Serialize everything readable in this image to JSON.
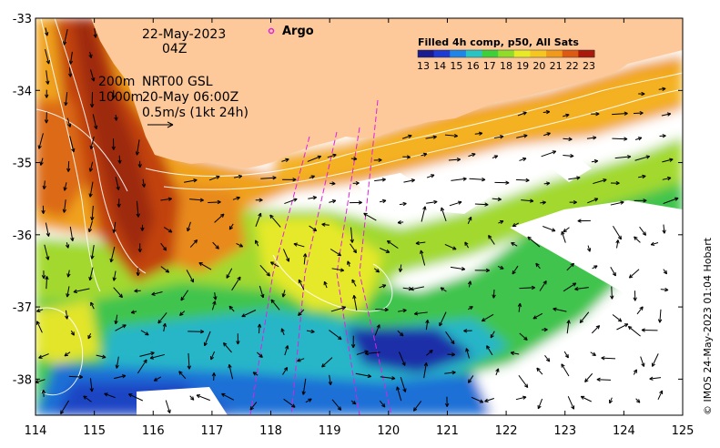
{
  "map": {
    "date": "22-May-2023",
    "hour": "04Z",
    "isobath_label": "200m",
    "isobath_label_2": "1000m",
    "current_source": "NRT00 GSL",
    "current_time": "20-May 06:00Z",
    "scale_label": "0.5m/s (1kt 24h)",
    "legend_marker_label": "Argo",
    "colorbar_title": "Filled 4h comp, p50, All Sats",
    "colorbar_ticks": [
      "13",
      "14",
      "15",
      "16",
      "17",
      "18",
      "19",
      "20",
      "21",
      "22",
      "23"
    ],
    "credit": "© IMOS 24-May-2023 01:04 Hobart",
    "lon_ticks": [
      "114",
      "115",
      "116",
      "117",
      "118",
      "119",
      "120",
      "121",
      "122",
      "123",
      "124",
      "125"
    ],
    "lat_ticks": [
      "-33",
      "-34",
      "-35",
      "-36",
      "-37",
      "-38"
    ],
    "lon_range": [
      114,
      125
    ],
    "lat_range": [
      -38.5,
      -33
    ],
    "colors": {
      "land": "#fdc99b",
      "cold": "#1a2d9e",
      "warm": "#b32a14",
      "argo_marker": "#e020e0"
    },
    "colorbar_colors": [
      "#1b1a8f",
      "#1d3bd0",
      "#1f86e8",
      "#2bc4c4",
      "#3fcf3a",
      "#8fdc2b",
      "#e8ea28",
      "#f5c522",
      "#ef9a1d",
      "#dc5a14",
      "#a81a0c"
    ]
  }
}
